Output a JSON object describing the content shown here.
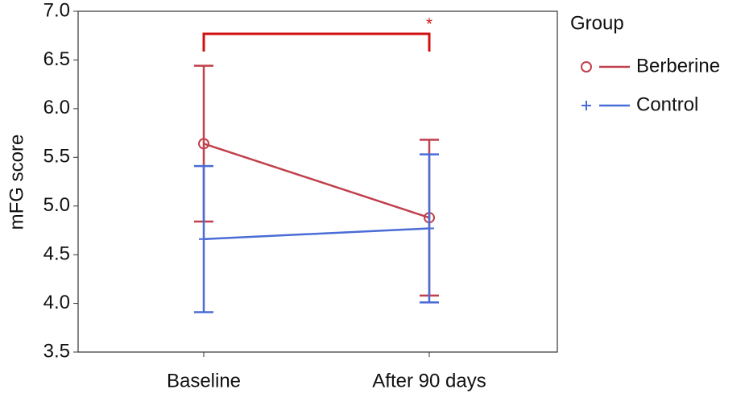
{
  "chart_data": {
    "type": "line",
    "y_label": "mFG score",
    "categories": [
      "Baseline",
      "After 90 days"
    ],
    "series": [
      {
        "name": "Berberine",
        "color": "#c0404c",
        "marker": "circle",
        "values": [
          5.64,
          4.88
        ],
        "errors": [
          0.8,
          0.8
        ]
      },
      {
        "name": "Control",
        "color": "#4a6cd6",
        "marker": "plus",
        "values": [
          4.66,
          4.77
        ],
        "errors": [
          0.75,
          0.76
        ]
      }
    ],
    "ylim": [
      3.5,
      7.0
    ],
    "yticks": [
      3.5,
      {
        "value": 4,
        "label": "4.0"
      },
      4.5,
      {
        "value": 5,
        "label": "5.0"
      },
      5.5,
      {
        "value": 6,
        "label": "6.0"
      },
      6.5,
      {
        "value": 7,
        "label": "7.0"
      }
    ],
    "legend_title": "Group",
    "annotation": "*"
  }
}
